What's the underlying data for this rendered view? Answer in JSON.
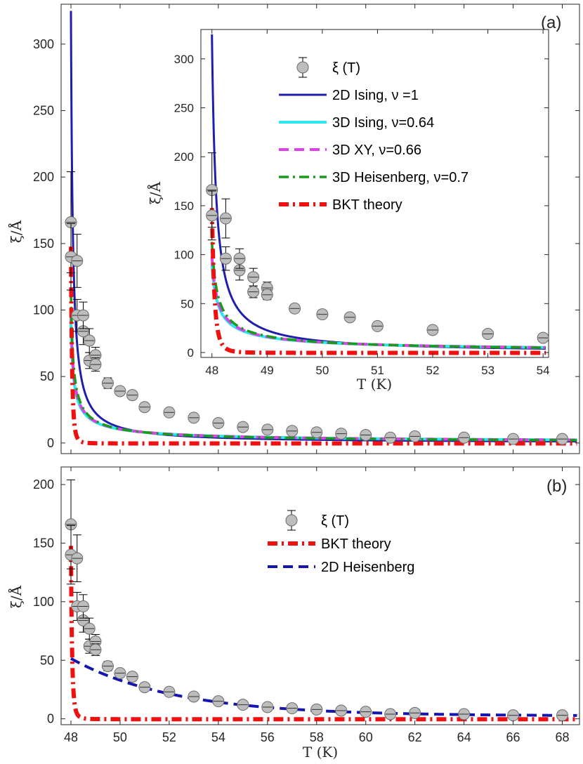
{
  "chart_data": [
    {
      "panel": "(a)",
      "type": "line",
      "xlabel": "",
      "ylabel": "ξ/Å",
      "xlim": [
        47.6,
        68.7
      ],
      "ylim": [
        -8,
        330
      ],
      "xticks": [
        48,
        50,
        52,
        54,
        56,
        58,
        60,
        62,
        64,
        66,
        68
      ],
      "xtick_labels": [
        "",
        "",
        "",
        "",
        "",
        "",
        "",
        "",
        "",
        "",
        ""
      ],
      "yticks": [
        0,
        50,
        100,
        150,
        200,
        250,
        300
      ],
      "ytick_labels": [
        "0",
        "50",
        "100",
        "150",
        "200",
        "250",
        "300"
      ],
      "points": {
        "name": "ξ (T)",
        "x": [
          48.0,
          48.0,
          48.25,
          48.25,
          48.5,
          48.5,
          48.75,
          48.75,
          49.0,
          49.0,
          49.5,
          50.0,
          50.5,
          51.0,
          52.0,
          53.0,
          54.0,
          55.0,
          56.0,
          57.0,
          58.0,
          59.0,
          60.0,
          61.0,
          62.0,
          64.0,
          66.0,
          68.0
        ],
        "y": [
          166,
          140,
          137,
          96,
          84,
          96,
          77,
          62,
          66,
          59,
          45,
          39,
          36,
          27,
          23,
          19,
          15,
          12,
          10,
          9,
          8,
          7,
          6,
          4,
          5,
          4,
          3,
          3
        ],
        "err": [
          38,
          25,
          20,
          12,
          10,
          10,
          9,
          6,
          6,
          5,
          4,
          3,
          3,
          3,
          2,
          2,
          2,
          1,
          1,
          1,
          1,
          1,
          1,
          1,
          1,
          1,
          1,
          1
        ]
      },
      "series": [
        {
          "name": "2D Ising, ν =1",
          "nu": 1,
          "color": "#1f1fae",
          "style": "solid",
          "width": 3
        },
        {
          "name": "3D Ising, ν=0.64",
          "nu": 0.64,
          "color": "#2ee6f0",
          "style": "solid",
          "width": 4
        },
        {
          "name": "3D XY, ν=0.66",
          "nu": 0.66,
          "color": "#e040e8",
          "style": "dashed",
          "width": 4
        },
        {
          "name": "3D Heisenberg, ν=0.7",
          "nu": 0.7,
          "color": "#1a9a1a",
          "style": "dashdot",
          "width": 3.5
        },
        {
          "name": "BKT theory",
          "color": "#f01010",
          "style": "dashdot",
          "width": 6
        }
      ]
    },
    {
      "panel": "inset",
      "type": "line",
      "xlabel": "T (K)",
      "ylabel": "ξ/Å",
      "xlim": [
        47.8,
        54.1
      ],
      "ylim": [
        -5,
        330
      ],
      "xticks": [
        48,
        49,
        50,
        51,
        52,
        53,
        54
      ],
      "xtick_labels": [
        "48",
        "49",
        "50",
        "51",
        "52",
        "53",
        "54"
      ],
      "yticks": [
        0,
        50,
        100,
        150,
        200,
        250,
        300
      ],
      "ytick_labels": [
        "0",
        "50",
        "100",
        "150",
        "200",
        "250",
        "300"
      ],
      "legend": [
        "ξ (T)",
        "2D Ising, ν =1",
        "3D Ising, ν=0.64",
        "3D XY, ν=0.66",
        "3D Heisenberg, ν=0.7",
        "BKT theory"
      ],
      "legend_position": "top-center"
    },
    {
      "panel": "(b)",
      "type": "line",
      "xlabel": "T (K)",
      "ylabel": "ξ/Å",
      "xlim": [
        47.6,
        68.7
      ],
      "ylim": [
        -5,
        215
      ],
      "xticks": [
        48,
        50,
        52,
        54,
        56,
        58,
        60,
        62,
        64,
        66,
        68
      ],
      "xtick_labels": [
        "48",
        "50",
        "52",
        "54",
        "56",
        "58",
        "60",
        "62",
        "64",
        "66",
        "68"
      ],
      "yticks": [
        0,
        50,
        100,
        150,
        200
      ],
      "ytick_labels": [
        "0",
        "50",
        "100",
        "150",
        "200"
      ],
      "legend": [
        "ξ (T)",
        "BKT theory",
        "2D Heisenberg"
      ],
      "legend_position": "top-center",
      "series": [
        {
          "name": "BKT theory",
          "color": "#f01010",
          "style": "dashdot",
          "width": 6
        },
        {
          "name": "2D Heisenberg",
          "color": "#1515b0",
          "style": "dashed",
          "width": 4
        }
      ]
    }
  ]
}
